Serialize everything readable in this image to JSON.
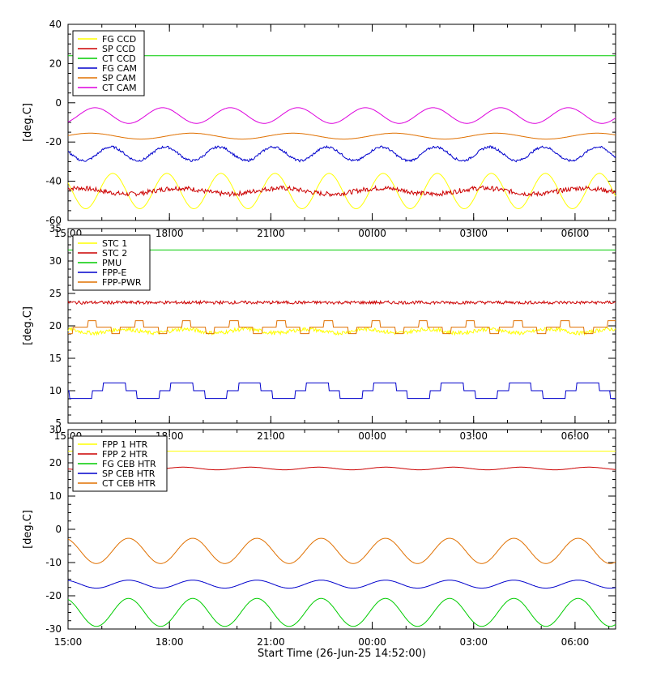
{
  "footer": {
    "xlabel": "Start Time (26-Jun-25 14:52:00)"
  },
  "chart_data": [
    {
      "type": "line",
      "ylabel": "[deg.C]",
      "ylim": [
        -60,
        40
      ],
      "yticks": [
        -60,
        -40,
        -20,
        0,
        20,
        40
      ],
      "xlim_hours": [
        15.0,
        31.2
      ],
      "xticks": [
        {
          "label": "15:00",
          "hour": 15
        },
        {
          "label": "18:00",
          "hour": 18
        },
        {
          "label": "21:00",
          "hour": 21
        },
        {
          "label": "00:00",
          "hour": 24
        },
        {
          "label": "03:00",
          "hour": 27
        },
        {
          "label": "06:00",
          "hour": 30
        }
      ],
      "legend_position": "top-left",
      "series": [
        {
          "name": "FG CCD",
          "color": "#ffff00",
          "base": -45,
          "amp": 9,
          "period": 1.6,
          "phase": 0.3
        },
        {
          "name": "SP CCD",
          "color": "#cc0000",
          "base": -45,
          "amp": 1.5,
          "period": 3.0,
          "phase": 1.0,
          "noise": 1.2
        },
        {
          "name": "CT CCD",
          "color": "#00cc00",
          "base": 24,
          "amp": 0,
          "period": 1,
          "phase": 0
        },
        {
          "name": "FG CAM",
          "color": "#0000cc",
          "base": -26,
          "amp": 3.5,
          "period": 1.6,
          "phase": 0.5,
          "noise": 0.6
        },
        {
          "name": "SP CAM",
          "color": "#e07000",
          "base": -17,
          "amp": 1.5,
          "period": 3.0,
          "phase": 0.2
        },
        {
          "name": "CT CAM",
          "color": "#dd00dd",
          "base": -6.5,
          "amp": 4,
          "period": 2.0,
          "phase": 2.2
        }
      ]
    },
    {
      "type": "line",
      "ylabel": "[deg.C]",
      "ylim": [
        5,
        35
      ],
      "yticks": [
        5,
        10,
        15,
        20,
        25,
        30,
        35
      ],
      "xlim_hours": [
        15.0,
        31.2
      ],
      "xticks": [
        {
          "label": "15:00",
          "hour": 15
        },
        {
          "label": "18:00",
          "hour": 18
        },
        {
          "label": "21:00",
          "hour": 21
        },
        {
          "label": "00:00",
          "hour": 24
        },
        {
          "label": "03:00",
          "hour": 27
        },
        {
          "label": "06:00",
          "hour": 30
        }
      ],
      "legend_position": "top-left",
      "series": [
        {
          "name": "STC 1",
          "color": "#ffff00",
          "base": 19.2,
          "amp": 0.3,
          "period": 1.8,
          "phase": 0,
          "noise": 0.3
        },
        {
          "name": "STC 2",
          "color": "#cc0000",
          "base": 23.6,
          "amp": 0,
          "period": 1,
          "phase": 0,
          "noise": 0.25
        },
        {
          "name": "PMU",
          "color": "#00cc00",
          "base": 31.7,
          "amp": 0,
          "period": 1,
          "phase": 0
        },
        {
          "name": "FPP-E",
          "color": "#0000cc",
          "base": 10.0,
          "amp": 1.2,
          "period": 2.0,
          "phase": 0.4,
          "step": 1.2
        },
        {
          "name": "FPP-PWR",
          "color": "#e07000",
          "base": 19.8,
          "amp": 0.6,
          "period": 1.4,
          "phase": 0.2,
          "step": 1.0
        }
      ]
    },
    {
      "type": "line",
      "ylabel": "[deg.C]",
      "ylim": [
        -30,
        30
      ],
      "yticks": [
        -30,
        -20,
        -10,
        0,
        10,
        20,
        30
      ],
      "xlim_hours": [
        15.0,
        31.2
      ],
      "xticks": [
        {
          "label": "15:00",
          "hour": 15
        },
        {
          "label": "18:00",
          "hour": 18
        },
        {
          "label": "21:00",
          "hour": 21
        },
        {
          "label": "00:00",
          "hour": 24
        },
        {
          "label": "03:00",
          "hour": 27
        },
        {
          "label": "06:00",
          "hour": 30
        }
      ],
      "legend_position": "top-left",
      "series": [
        {
          "name": "FPP 1 HTR",
          "color": "#ffff00",
          "base": 23.5,
          "amp": 0,
          "period": 1,
          "phase": 0
        },
        {
          "name": "FPP 2 HTR",
          "color": "#cc0000",
          "base": 18.3,
          "amp": 0.4,
          "period": 2.0,
          "phase": 0.3
        },
        {
          "name": "FG CEB HTR",
          "color": "#00cc00",
          "base": -25,
          "amp": 4.2,
          "period": 1.9,
          "phase": 2.6
        },
        {
          "name": "SP CEB HTR",
          "color": "#0000cc",
          "base": -16.5,
          "amp": 1.2,
          "period": 1.9,
          "phase": 2.6
        },
        {
          "name": "CT CEB HTR",
          "color": "#e07000",
          "base": -6.5,
          "amp": 3.8,
          "period": 1.9,
          "phase": 2.6
        }
      ]
    }
  ]
}
